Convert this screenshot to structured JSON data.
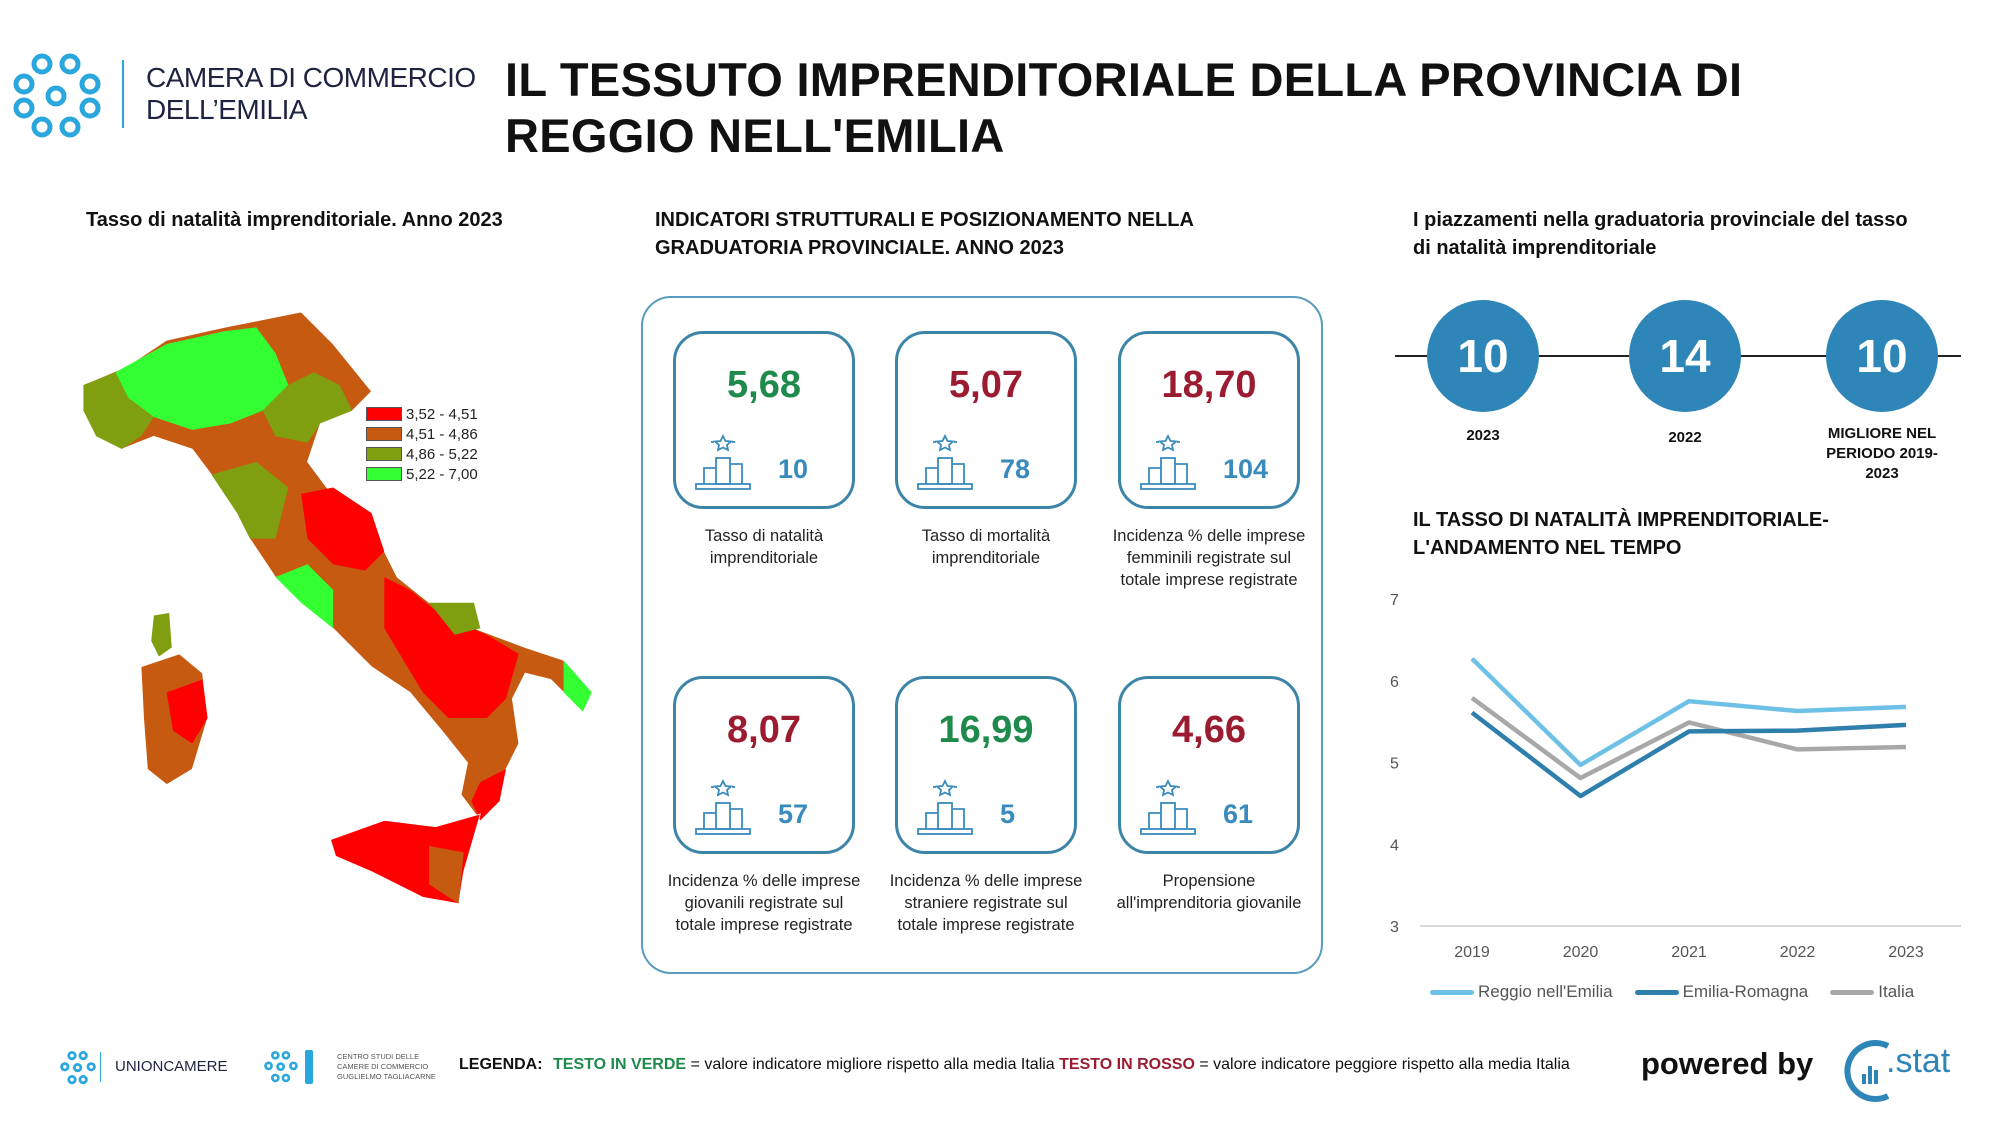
{
  "header": {
    "org_line1": "CAMERA DI COMMERCIO",
    "org_line2": "DELL’EMILIA",
    "title_line1": "IL TESSUTO IMPRENDITORIALE DELLA PROVINCIA DI",
    "title_line2": "REGGIO NELL'EMILIA"
  },
  "map": {
    "title": "Tasso di natalità imprenditoriale. Anno 2023",
    "legend": [
      {
        "label": "3,52 - 4,51",
        "color": "#ff0000"
      },
      {
        "label": "4,51 - 4,86",
        "color": "#c65a11"
      },
      {
        "label": "4,86 - 5,22",
        "color": "#7f9f10"
      },
      {
        "label": "5,22 - 7,00",
        "color": "#33ff33"
      }
    ]
  },
  "indicators": {
    "title_line1": "INDICATORI STRUTTURALI E POSIZIONAMENTO NELLA",
    "title_line2": "GRADUATORIA PROVINCIALE. ANNO 2023",
    "cards": [
      {
        "value": "5,68",
        "status": "green",
        "rank": "10",
        "label": "Tasso di natalità imprenditoriale"
      },
      {
        "value": "5,07",
        "status": "red",
        "rank": "78",
        "label": "Tasso di mortalità imprenditoriale"
      },
      {
        "value": "18,70",
        "status": "red",
        "rank": "104",
        "label": "Incidenza % delle imprese femminili registrate sul totale imprese registrate"
      },
      {
        "value": "8,07",
        "status": "red",
        "rank": "57",
        "label": "Incidenza % delle imprese giovanili registrate sul totale imprese registrate"
      },
      {
        "value": "16,99",
        "status": "green",
        "rank": "5",
        "label": "Incidenza % delle imprese straniere registrate sul totale imprese registrate"
      },
      {
        "value": "4,66",
        "status": "red",
        "rank": "61",
        "label": "Propensione all'imprenditoria giovanile"
      }
    ]
  },
  "placements": {
    "title_line1": "I piazzamenti nella graduatoria provinciale del tasso",
    "title_line2": "di natalità imprenditoriale",
    "items": [
      {
        "value": "10",
        "label": "2023"
      },
      {
        "value": "14",
        "label": "2022"
      },
      {
        "value": "10",
        "label": "MIGLIORE NEL PERIODO 2019-2023"
      }
    ]
  },
  "chart_data": {
    "type": "line",
    "title_line1": "IL TASSO DI NATALITÀ IMPRENDITORIALE-",
    "title_line2": "L'ANDAMENTO NEL TEMPO",
    "categories": [
      "2019",
      "2020",
      "2021",
      "2022",
      "2023"
    ],
    "yticks": [
      "3",
      "4",
      "5",
      "6",
      "7"
    ],
    "ylim": [
      3,
      7
    ],
    "legend_position": "bottom",
    "series": [
      {
        "name": "Reggio nell'Emilia",
        "color": "#6ec1e6",
        "values": [
          6.27,
          4.97,
          5.75,
          5.63,
          5.68
        ]
      },
      {
        "name": "Emilia-Romagna",
        "color": "#2f7fad",
        "values": [
          5.61,
          4.59,
          5.38,
          5.39,
          5.46
        ]
      },
      {
        "name": "Italia",
        "color": "#a8a8a8",
        "values": [
          5.79,
          4.81,
          5.49,
          5.16,
          5.19
        ]
      }
    ]
  },
  "footer": {
    "unioncamere": "UNIONCAMERE",
    "centro_line1": "CENTRO STUDI DELLE",
    "centro_line2": "CAMERE DI COMMERCIO",
    "centro_line3": "GUGLIELMO TAGLIACARNE",
    "legend_label": "LEGENDA:",
    "green_text": "TESTO IN VERDE",
    "green_desc": " = valore indicatore migliore rispetto alla media Italia ",
    "red_text": "TESTO IN ROSSO",
    "red_desc": " = valore indicatore peggiore rispetto alla media Italia",
    "powered_by": "powered by",
    "cstat": ".stat"
  }
}
